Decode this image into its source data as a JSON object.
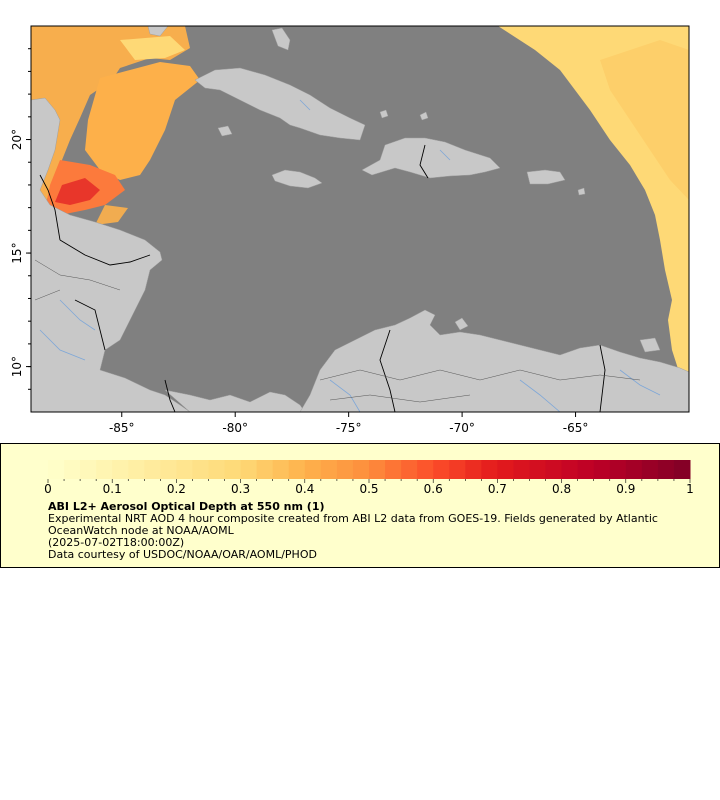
{
  "map": {
    "region": "Caribbean Sea",
    "lon_range": [
      -89,
      -60
    ],
    "lat_range": [
      8,
      25
    ],
    "lon_ticks": [
      {
        "value": -85,
        "label": "-85°"
      },
      {
        "value": -80,
        "label": "-80°"
      },
      {
        "value": -75,
        "label": "-75°"
      },
      {
        "value": -70,
        "label": "-70°"
      },
      {
        "value": -65,
        "label": "-65°"
      }
    ],
    "lat_ticks": [
      {
        "value": 20,
        "label": "20°"
      },
      {
        "value": 15,
        "label": "15°"
      },
      {
        "value": 10,
        "label": "10°"
      }
    ],
    "colors": {
      "ocean_nodata": "#808080",
      "land": "#c8c8c8",
      "borders": "#000000",
      "rivers": "#7ea7d8",
      "aod_low": "#ffffcc",
      "aod_high": "#800026"
    }
  },
  "legend": {
    "scale_min": 0,
    "scale_max": 1,
    "ticks": [
      "0",
      "0.1",
      "0.2",
      "0.3",
      "0.4",
      "0.5",
      "0.6",
      "0.7",
      "0.8",
      "0.9",
      "1"
    ],
    "title": "ABI L2+ Aerosol Optical Depth at 550 nm (1)",
    "line1": "Experimental NRT AOD 4 hour composite created from ABI L2 data from GOES-19. Fields generated by Atlantic",
    "line2": "OceanWatch node at NOAA/AOML",
    "line3": "(2025-07-02T18:00:00Z)",
    "line4": "Data courtesy of USDOC/NOAA/OAR/AOML/PHOD",
    "background": "#ffffcc"
  }
}
